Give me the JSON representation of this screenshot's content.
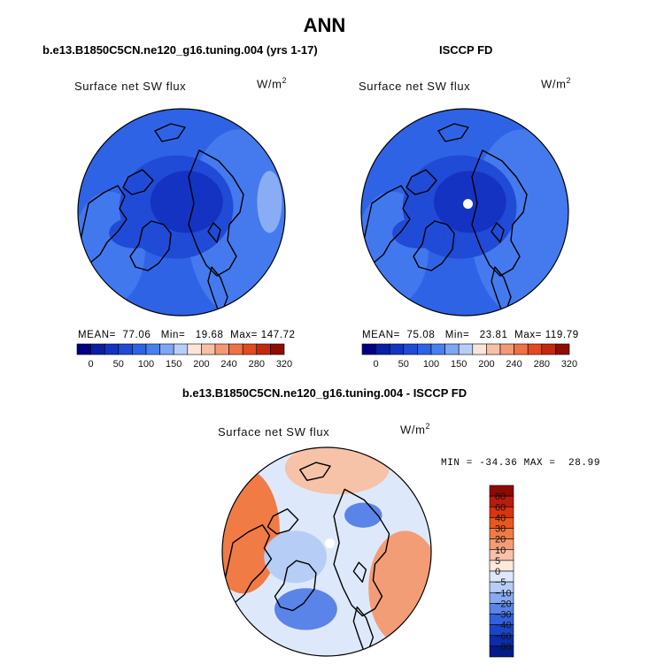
{
  "chart_data": [
    {
      "type": "heatmap",
      "projection": "north-polar-stereographic",
      "title": "b.e13.B1850C5CN.ne120_g16.tuning.004 (yrs 1-17)",
      "variable": "Surface net SW flux",
      "units": "W/m",
      "units_exp": "2",
      "stats": {
        "mean_label": "MEAN=",
        "mean": "77.06",
        "min_label": "Min=",
        "min": "19.68",
        "max_label": "Max=",
        "max": "147.72"
      },
      "legend_ticks": [
        "0",
        "50",
        "100",
        "150",
        "200",
        "240",
        "280",
        "320"
      ]
    },
    {
      "type": "heatmap",
      "projection": "north-polar-stereographic",
      "title": "ISCCP FD",
      "variable": "Surface net SW flux",
      "units": "W/m",
      "units_exp": "2",
      "stats": {
        "mean_label": "MEAN=",
        "mean": "75.08",
        "min_label": "Min=",
        "min": "23.81",
        "max_label": "Max=",
        "max": "119.79"
      },
      "legend_ticks": [
        "0",
        "50",
        "100",
        "150",
        "200",
        "240",
        "280",
        "320"
      ]
    },
    {
      "type": "heatmap",
      "projection": "north-polar-stereographic",
      "title": "b.e13.B1850C5CN.ne120_g16.tuning.004 - ISCCP FD",
      "variable": "Surface net SW flux",
      "units": "W/m",
      "units_exp": "2",
      "stats_text": "MIN = -34.36 MAX =  28.99",
      "legend_ticks": [
        "80",
        "60",
        "40",
        "30",
        "20",
        "10",
        "5",
        "0",
        "−5",
        "−10",
        "−20",
        "−30",
        "−40",
        "−60",
        "−80"
      ]
    }
  ],
  "page": {
    "title": "ANN"
  },
  "colors": {
    "abs_scale": [
      "#000083",
      "#0a1fa6",
      "#1433c2",
      "#1f4bd6",
      "#2e63e6",
      "#4a7ff0",
      "#7ea6f5",
      "#b7cef8",
      "#fbe4d8",
      "#f7c0a5",
      "#f39a75",
      "#ee7246",
      "#e34a20",
      "#c22a0e",
      "#8f0d04"
    ],
    "diff_scale": [
      "#8e0a03",
      "#b81c0c",
      "#d9330f",
      "#e9561f",
      "#f07b45",
      "#f39d76",
      "#f6c2a8",
      "#fde9dc",
      "#dde9fb",
      "#b6cdf6",
      "#88aaf0",
      "#5b84e8",
      "#3261dc",
      "#1c45c6",
      "#0c2ca8",
      "#021a8a"
    ]
  }
}
